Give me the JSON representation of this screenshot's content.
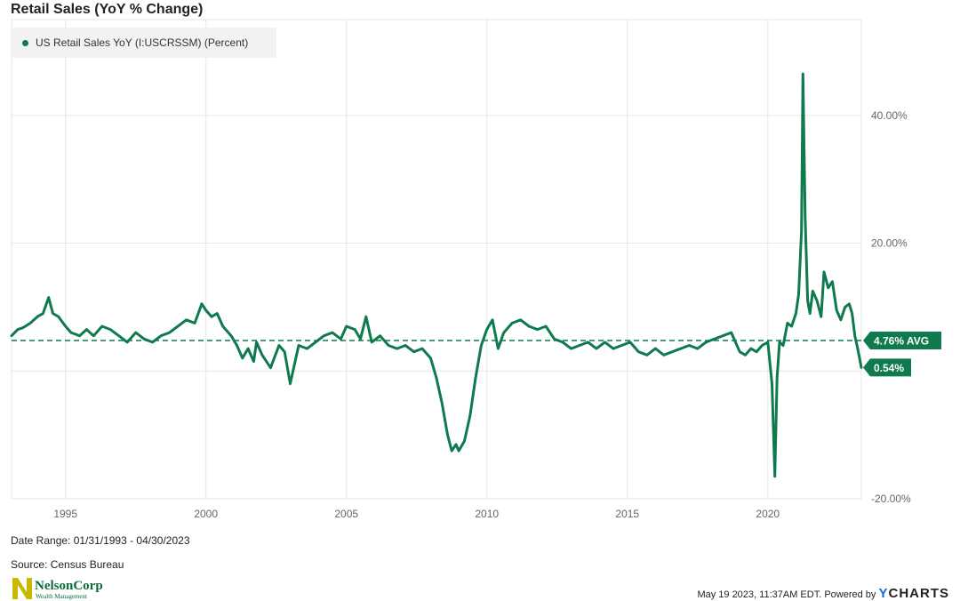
{
  "header": {
    "title": "Retail Sales (YoY % Change)"
  },
  "legend": {
    "label": "US Retail Sales YoY (I:USCRSSM) (Percent)"
  },
  "footer": {
    "date_range": "Date Range: 01/31/1993 - 04/30/2023",
    "source": "Source: Census Bureau",
    "timestamp": "May 19 2023, 11:37AM EDT.",
    "powered_by": "Powered by",
    "ycharts_y": "Y",
    "ycharts_rest": "CHARTS"
  },
  "logo": {
    "name": "NelsonCorp",
    "tagline": "Wealth Management"
  },
  "colors": {
    "line": "#0e7a4d",
    "grid": "#e6e6e6",
    "axis_text": "#666666"
  },
  "chart_data": {
    "type": "line",
    "title": "Retail Sales (YoY % Change)",
    "xlabel": "",
    "ylabel": "",
    "x_ticks": [
      "1995",
      "2000",
      "2005",
      "2010",
      "2015",
      "2020"
    ],
    "x_tick_values": [
      1995,
      2000,
      2005,
      2010,
      2015,
      2020
    ],
    "y_ticks": [
      -20,
      20,
      40
    ],
    "y_tick_labels": [
      "-20.00%",
      "20.00%",
      "40.00%"
    ],
    "xlim": [
      1993.08,
      2023.33
    ],
    "ylim": [
      -20,
      55
    ],
    "grid": true,
    "legend_position": "top-left",
    "average": {
      "value": 4.76,
      "label": "4.76% AVG"
    },
    "last": {
      "value": 0.54,
      "label": "0.54%"
    },
    "series": [
      {
        "name": "US Retail Sales YoY (I:USCRSSM) (Percent)",
        "color": "#0e7a4d",
        "x": [
          1993.08,
          1993.3,
          1993.5,
          1993.75,
          1994.0,
          1994.2,
          1994.4,
          1994.55,
          1994.75,
          1995.0,
          1995.2,
          1995.5,
          1995.75,
          1996.0,
          1996.3,
          1996.6,
          1996.9,
          1997.2,
          1997.5,
          1997.8,
          1998.1,
          1998.4,
          1998.7,
          1999.0,
          1999.3,
          1999.6,
          1999.85,
          2000.0,
          2000.2,
          2000.4,
          2000.6,
          2000.9,
          2001.1,
          2001.3,
          2001.5,
          2001.7,
          2001.8,
          2002.0,
          2002.3,
          2002.6,
          2002.8,
          2003.0,
          2003.3,
          2003.6,
          2003.9,
          2004.2,
          2004.5,
          2004.8,
          2005.0,
          2005.3,
          2005.5,
          2005.7,
          2005.9,
          2006.2,
          2006.5,
          2006.8,
          2007.1,
          2007.4,
          2007.7,
          2008.0,
          2008.2,
          2008.4,
          2008.6,
          2008.75,
          2008.9,
          2009.0,
          2009.2,
          2009.4,
          2009.6,
          2009.8,
          2010.0,
          2010.2,
          2010.4,
          2010.6,
          2010.9,
          2011.2,
          2011.5,
          2011.8,
          2012.1,
          2012.4,
          2012.7,
          2013.0,
          2013.3,
          2013.6,
          2013.9,
          2014.2,
          2014.5,
          2014.8,
          2015.1,
          2015.4,
          2015.7,
          2016.0,
          2016.3,
          2016.6,
          2016.9,
          2017.2,
          2017.5,
          2017.8,
          2018.1,
          2018.4,
          2018.7,
          2019.0,
          2019.2,
          2019.4,
          2019.6,
          2019.8,
          2020.0,
          2020.15,
          2020.25,
          2020.33,
          2020.42,
          2020.55,
          2020.7,
          2020.85,
          2021.0,
          2021.1,
          2021.2,
          2021.25,
          2021.33,
          2021.42,
          2021.5,
          2021.6,
          2021.75,
          2021.9,
          2022.0,
          2022.15,
          2022.3,
          2022.45,
          2022.6,
          2022.75,
          2022.9,
          2023.0,
          2023.1,
          2023.2,
          2023.33
        ],
        "values": [
          5.5,
          6.5,
          6.8,
          7.5,
          8.5,
          9.0,
          11.5,
          9.0,
          8.5,
          7.0,
          6.0,
          5.5,
          6.5,
          5.5,
          7.0,
          6.5,
          5.5,
          4.5,
          6.0,
          5.0,
          4.5,
          5.5,
          6.0,
          7.0,
          8.0,
          7.5,
          10.5,
          9.5,
          8.5,
          9.0,
          7.0,
          5.5,
          4.0,
          2.0,
          3.5,
          1.5,
          4.5,
          2.5,
          0.5,
          4.0,
          3.0,
          -2.0,
          4.0,
          3.5,
          4.5,
          5.5,
          6.0,
          5.0,
          7.0,
          6.5,
          5.0,
          8.5,
          4.5,
          5.5,
          4.0,
          3.5,
          4.0,
          3.0,
          3.5,
          2.0,
          -1.0,
          -5.0,
          -10.0,
          -12.5,
          -11.5,
          -12.5,
          -11.0,
          -7.0,
          -1.0,
          4.0,
          6.5,
          8.0,
          3.5,
          6.0,
          7.5,
          8.0,
          7.0,
          6.5,
          7.0,
          5.0,
          4.5,
          3.5,
          4.0,
          4.5,
          3.5,
          4.5,
          3.5,
          4.0,
          4.5,
          3.0,
          2.5,
          3.5,
          2.5,
          3.0,
          3.5,
          4.0,
          3.5,
          4.5,
          5.0,
          5.5,
          6.0,
          3.0,
          2.5,
          3.5,
          3.0,
          4.0,
          4.5,
          -2.0,
          -16.5,
          -1.0,
          4.5,
          4.0,
          7.5,
          7.0,
          9.0,
          12.0,
          22.0,
          46.5,
          24.0,
          11.0,
          9.0,
          12.5,
          11.0,
          8.5,
          15.5,
          13.0,
          14.0,
          9.5,
          8.0,
          10.0,
          10.5,
          9.0,
          5.5,
          3.5,
          0.54
        ]
      }
    ]
  }
}
